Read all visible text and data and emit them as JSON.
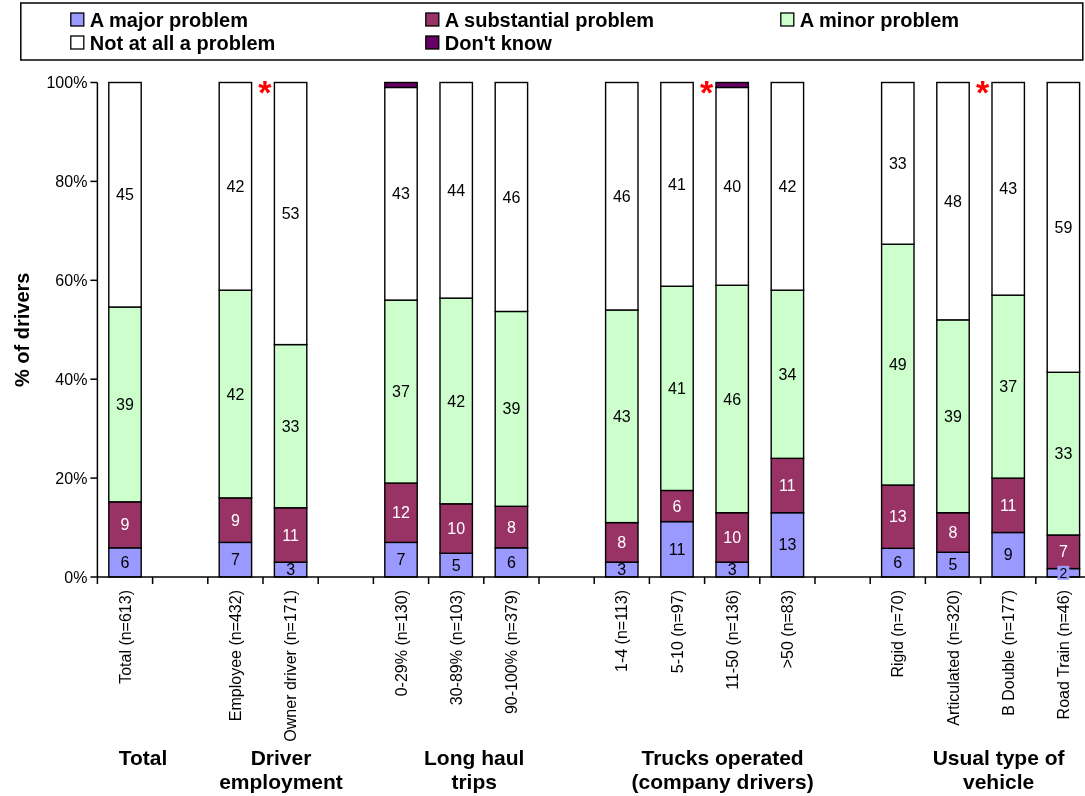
{
  "chart_data": {
    "type": "bar",
    "stacked": true,
    "categories": [
      "Total (n=613)",
      null,
      "Employee (n=432)",
      "Owner driver (n=171)",
      null,
      "0-29% (n=130)",
      "30-89% (n=103)",
      "90-100% (n=379)",
      null,
      "1-4 (n=113)",
      "5-10 (n=97)",
      "11-50 (n=136)",
      ">50 (n=83)",
      null,
      "Rigid (n=70)",
      "Articulated (n=320)",
      "B Double (n=177)",
      "Road Train (n=46)"
    ],
    "series": [
      {
        "name": "A major problem",
        "color": "#9999ff",
        "values": [
          5.9,
          null,
          7,
          3,
          null,
          7,
          4.8,
          5.9,
          null,
          3,
          11.2,
          3,
          13,
          null,
          5.8,
          5,
          9,
          1.7
        ],
        "value_labels": [
          "6",
          null,
          "7",
          "3",
          null,
          "7",
          "5",
          "6",
          null,
          "3",
          "11",
          "3",
          "13",
          null,
          "6",
          "5",
          "9",
          "2"
        ]
      },
      {
        "name": "A substantial problem",
        "color": "#993366",
        "values": [
          9.3,
          null,
          9,
          11,
          null,
          12,
          10,
          8.4,
          null,
          8,
          6.3,
          10,
          11,
          null,
          12.8,
          8,
          11,
          6.8
        ],
        "value_labels": [
          "9",
          null,
          "9",
          "11",
          null,
          "12",
          "10",
          "8",
          null,
          "8",
          "6",
          "10",
          "11",
          null,
          "13",
          "8",
          "11",
          "7"
        ]
      },
      {
        "name": "A minor problem",
        "color": "#ccffcc",
        "values": [
          39.4,
          null,
          42,
          33,
          null,
          37,
          41.6,
          39.4,
          null,
          43,
          41.3,
          46,
          34,
          null,
          48.7,
          39,
          37,
          32.9
        ],
        "value_labels": [
          "39",
          null,
          "42",
          "33",
          null,
          "37",
          "42",
          "39",
          null,
          "43",
          "41",
          "46",
          "34",
          null,
          "49",
          "39",
          "37",
          "33"
        ]
      },
      {
        "name": "Not at all a problem",
        "color": "#ffffff",
        "values": [
          45.4,
          null,
          42,
          53,
          null,
          43,
          43.6,
          46.3,
          null,
          46,
          41.2,
          40,
          42,
          null,
          32.7,
          48,
          43,
          58.6
        ],
        "value_labels": [
          "45",
          null,
          "42",
          "53",
          null,
          "43",
          "44",
          "46",
          null,
          "46",
          "41",
          "40",
          "42",
          null,
          "33",
          "48",
          "43",
          "59"
        ]
      },
      {
        "name": "Don't know",
        "color": "#660066",
        "values": [
          null,
          null,
          null,
          null,
          null,
          1,
          null,
          null,
          null,
          null,
          null,
          1,
          null,
          null,
          null,
          null,
          null,
          null
        ]
      }
    ],
    "ylim": [
      0,
      100
    ],
    "yticks": [
      {
        "value": 0,
        "label": "0%"
      },
      {
        "value": 20,
        "label": "20%"
      },
      {
        "value": 40,
        "label": "40%"
      },
      {
        "value": 60,
        "label": "60%"
      },
      {
        "value": 80,
        "label": "80%"
      },
      {
        "value": 100,
        "label": "100%"
      }
    ],
    "ylabel": "% of drivers",
    "legend": "top",
    "annotations": [
      "Total",
      "Driver\nemployment",
      "Long haul\ntrips",
      "Trucks operated\n(company drivers)",
      "Usual type of\nvehicle",
      {
        "text": "*",
        "x": "Owner driver (n=171)",
        "y": 100
      },
      {
        "text": "*",
        "x": "11-50 (n=136)",
        "y": 100
      },
      {
        "text": "*",
        "x": "B Double (n=177)",
        "y": 100
      }
    ]
  }
}
